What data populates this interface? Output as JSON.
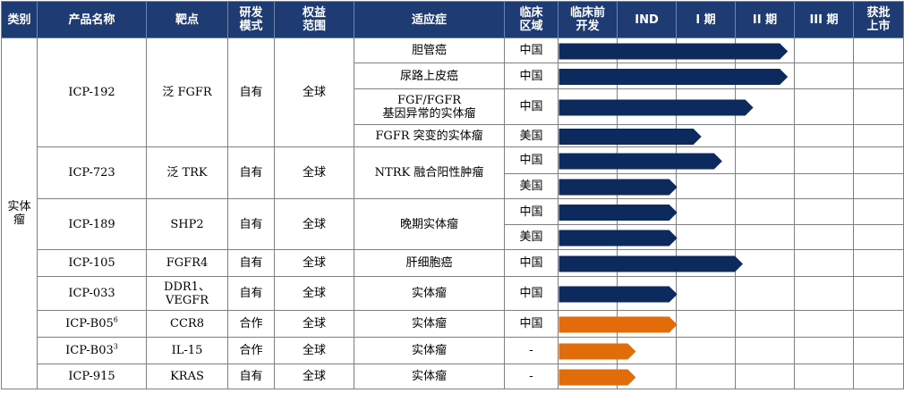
{
  "headers": {
    "category": "类别",
    "product": "产品名称",
    "target": "靶点",
    "model": "研发\n模式",
    "rights": "权益\n范围",
    "indication": "适应症",
    "region": "临床\n区域",
    "preclinical": "临床前\n开发",
    "ind": "IND",
    "phase1": "I 期",
    "phase2": "II 期",
    "phase3": "III 期",
    "approved": "获批\n上市"
  },
  "category": "实体\n瘤",
  "stages": [
    "临床前开发",
    "IND",
    "I 期",
    "II 期",
    "III 期",
    "获批上市"
  ],
  "colors": {
    "header_bg": "#1f3b73",
    "in_house_bar": "#0d2a5e",
    "partnered_bar": "#e36c0a"
  },
  "products": [
    {
      "name": "ICP-192",
      "sup": "",
      "target": "泛 FGFR",
      "model": "自有",
      "rights": "全球",
      "rows": [
        {
          "indication": "胆管癌",
          "region": "中国",
          "progress": 0.665,
          "bar": "in_house"
        },
        {
          "indication": "尿路上皮癌",
          "region": "中国",
          "progress": 0.665,
          "bar": "in_house"
        },
        {
          "indication": "FGF/FGFR\n基因异常的实体瘤",
          "region": "中国",
          "progress": 0.565,
          "bar": "in_house"
        },
        {
          "indication": "FGFR 突变的实体瘤",
          "region": "美国",
          "progress": 0.415,
          "bar": "in_house"
        }
      ]
    },
    {
      "name": "ICP-723",
      "sup": "",
      "target": "泛 TRK",
      "model": "自有",
      "rights": "全球",
      "rows": [
        {
          "indication": "NTRK 融合阳性肿瘤",
          "region": "中国",
          "progress": 0.475,
          "bar": "in_house"
        },
        {
          "indication": "",
          "region": "美国",
          "progress": 0.345,
          "bar": "in_house"
        }
      ]
    },
    {
      "name": "ICP-189",
      "sup": "",
      "target": "SHP2",
      "model": "自有",
      "rights": "全球",
      "rows": [
        {
          "indication": "晚期实体瘤",
          "region": "中国",
          "progress": 0.345,
          "bar": "in_house"
        },
        {
          "indication": "",
          "region": "美国",
          "progress": 0.345,
          "bar": "in_house"
        }
      ]
    },
    {
      "name": "ICP-105",
      "sup": "",
      "target": "FGFR4",
      "model": "自有",
      "rights": "全球",
      "rows": [
        {
          "indication": "肝细胞癌",
          "region": "中国",
          "progress": 0.535,
          "bar": "in_house"
        }
      ]
    },
    {
      "name": "ICP-033",
      "sup": "",
      "target": "DDR1、\nVEGFR",
      "model": "自有",
      "rights": "全球",
      "rows": [
        {
          "indication": "实体瘤",
          "region": "中国",
          "progress": 0.345,
          "bar": "in_house"
        }
      ]
    },
    {
      "name": "ICP-B05",
      "sup": "6",
      "target": "CCR8",
      "model": "合作",
      "rights": "全球",
      "rows": [
        {
          "indication": "实体瘤",
          "region": "中国",
          "progress": 0.345,
          "bar": "partnered"
        }
      ]
    },
    {
      "name": "ICP-B03",
      "sup": "3",
      "target": "IL-15",
      "model": "合作",
      "rights": "全球",
      "rows": [
        {
          "indication": "实体瘤",
          "region": "-",
          "progress": 0.225,
          "bar": "partnered"
        }
      ]
    },
    {
      "name": "ICP-915",
      "sup": "",
      "target": "KRAS",
      "model": "自有",
      "rights": "全球",
      "rows": [
        {
          "indication": "实体瘤",
          "region": "-",
          "progress": 0.225,
          "bar": "partnered"
        }
      ]
    }
  ]
}
